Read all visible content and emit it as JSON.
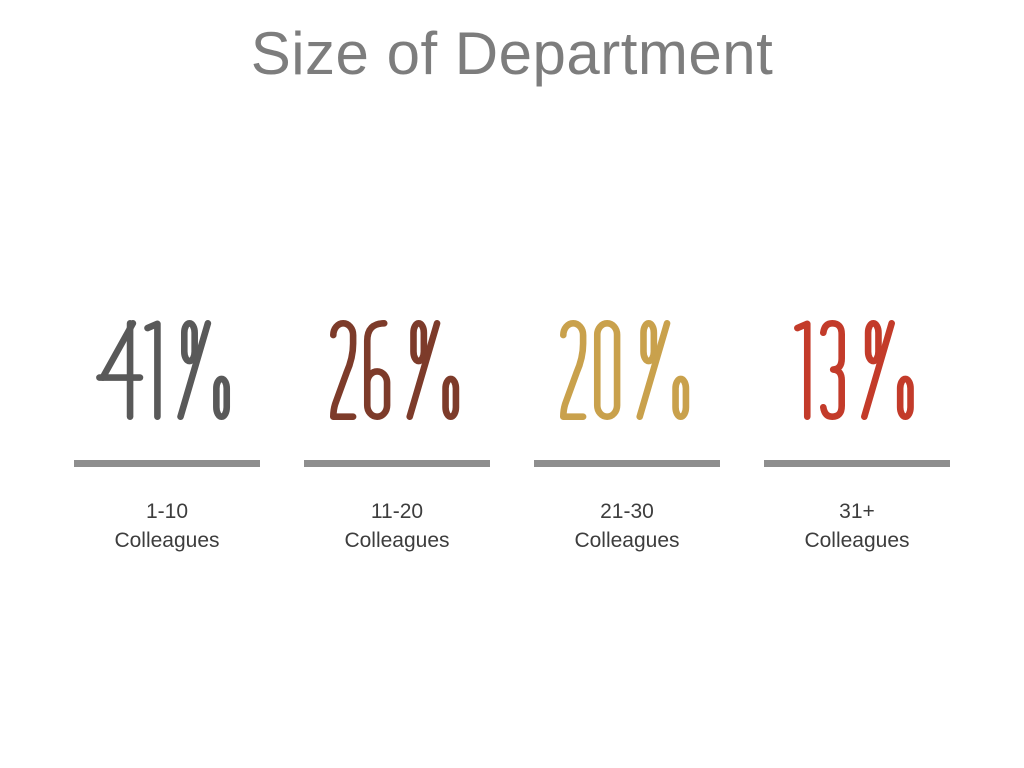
{
  "title": "Size of Department",
  "colors": {
    "title": "#7d7d7d",
    "label": "#3d3d3d",
    "underline": "#8e8e8e",
    "background": "#ffffff"
  },
  "chart_data": {
    "type": "table",
    "title": "Size of Department",
    "categories": [
      "1-10 Colleagues",
      "11-20 Colleagues",
      "21-30 Colleagues",
      "31+ Colleagues"
    ],
    "values": [
      41,
      26,
      20,
      13
    ],
    "unit": "%",
    "value_colors": [
      "#595959",
      "#7d3b2a",
      "#c9a14c",
      "#c33b2a"
    ],
    "legend": "none",
    "grid": "off"
  },
  "stats": [
    {
      "value": "41%",
      "color": "#595959",
      "label_line1": "1-10",
      "label_line2": "Colleagues"
    },
    {
      "value": "26%",
      "color": "#7d3b2a",
      "label_line1": "11-20",
      "label_line2": "Colleagues"
    },
    {
      "value": "20%",
      "color": "#c9a14c",
      "label_line1": "21-30",
      "label_line2": "Colleagues"
    },
    {
      "value": "13%",
      "color": "#c33b2a",
      "label_line1": "31+",
      "label_line2": "Colleagues"
    }
  ]
}
